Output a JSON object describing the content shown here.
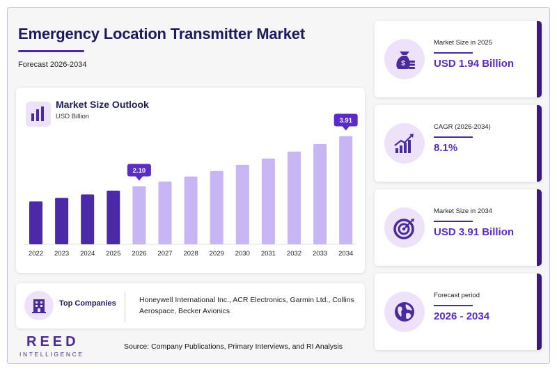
{
  "header": {
    "title": "Emergency Location Transmitter Market",
    "subtitle": "Forecast 2026-2034"
  },
  "chart": {
    "title": "Market Size Outlook",
    "unit": "USD Billion",
    "icon": "bar-chart-icon"
  },
  "chart_data": {
    "type": "bar",
    "title": "Market Size Outlook",
    "ylabel": "USD Billion",
    "categories": [
      "2022",
      "2023",
      "2024",
      "2025",
      "2026",
      "2027",
      "2028",
      "2029",
      "2030",
      "2031",
      "2032",
      "2033",
      "2034"
    ],
    "values": [
      1.55,
      1.68,
      1.8,
      1.94,
      2.1,
      2.27,
      2.45,
      2.65,
      2.87,
      3.1,
      3.35,
      3.62,
      3.91
    ],
    "historical_through": "2025",
    "ylim": [
      0,
      4.2
    ],
    "grid": false,
    "labeled_bars": [
      {
        "category": "2026",
        "label": "2.10"
      },
      {
        "category": "2034",
        "label": "3.91"
      }
    ],
    "colors": {
      "historical": "#4b2aa8",
      "forecast": "#c7b6f3",
      "callout": "#5a2bc6"
    }
  },
  "companies": {
    "label": "Top Companies",
    "list": "Honeywell International Inc., ACR Electronics, Garmin Ltd., Collins Aerospace, Becker Avionics",
    "icon": "building-icon"
  },
  "logo": {
    "main": "REED",
    "sub": "INTELLIGENCE"
  },
  "source": "Source: Company Publications, Primary Interviews, and RI Analysis",
  "stats": [
    {
      "label": "Market Size in 2025",
      "value": "USD 1.94 Billion",
      "icon": "money-bag-icon"
    },
    {
      "label": "CAGR (2026-2034)",
      "value": "8.1%",
      "icon": "growth-chart-icon"
    },
    {
      "label": "Market Size in 2034",
      "value": "USD 3.91 Billion",
      "icon": "target-icon"
    },
    {
      "label": "Forecast period",
      "value": "2026 - 2034",
      "icon": "globe-icon"
    }
  ],
  "colors": {
    "accent": "#4b2a9c",
    "title": "#1e1a5e",
    "value": "#5a2bc6",
    "icon_bg": "#eee2fb"
  }
}
